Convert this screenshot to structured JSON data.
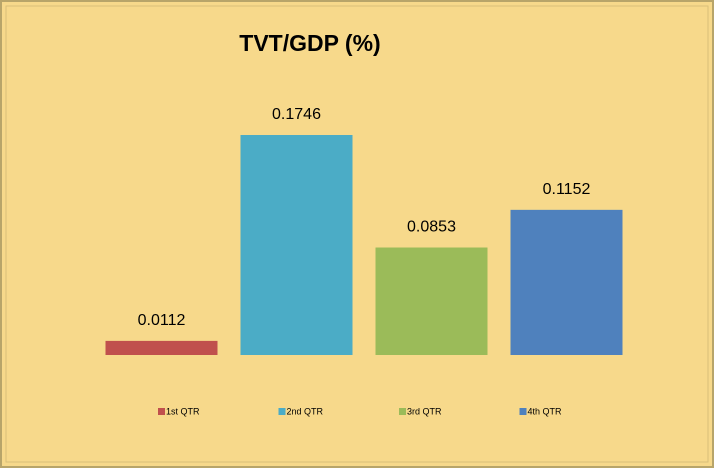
{
  "chart_data": {
    "type": "bar",
    "title": "TVT/GDP (%)",
    "categories": [
      "1st QTR",
      "2nd QTR",
      "3rd QTR",
      "4th QTR"
    ],
    "values": [
      0.0112,
      0.1746,
      0.0853,
      0.1152
    ],
    "colors": [
      "#c0504d",
      "#4bacc6",
      "#9bbb59",
      "#4f81bd"
    ],
    "legend": "bottom"
  }
}
